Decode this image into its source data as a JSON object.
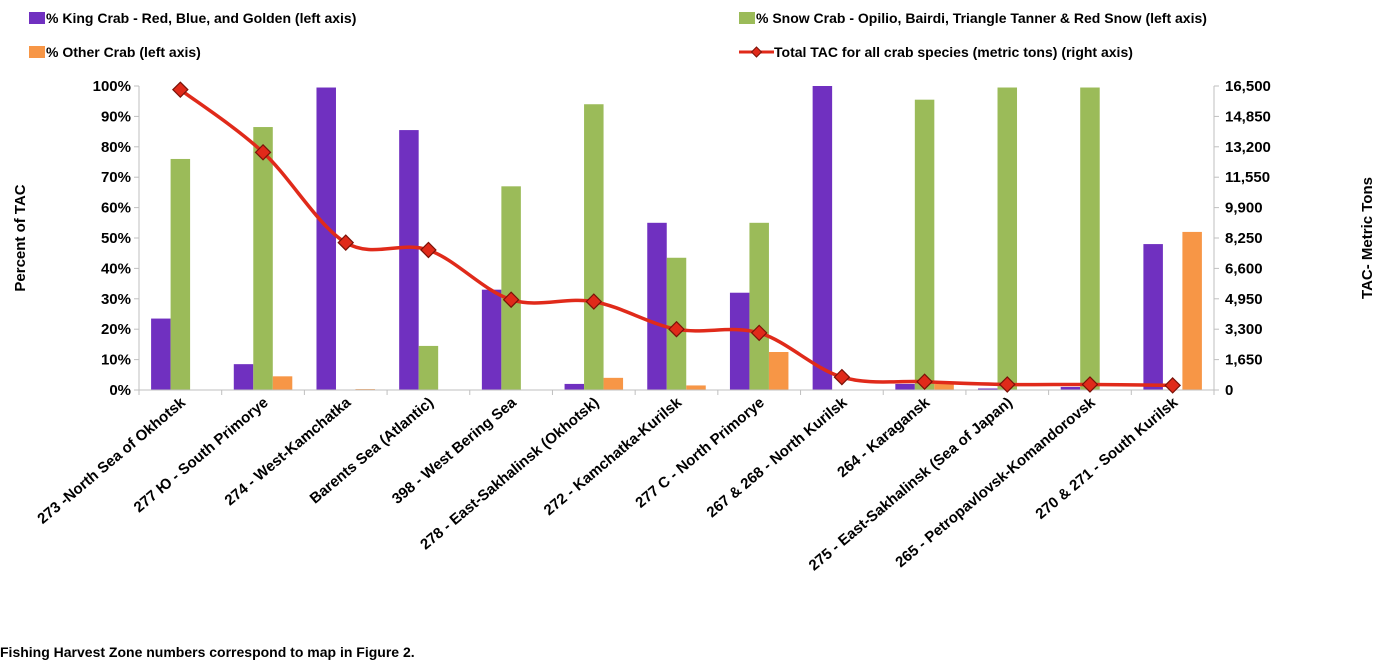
{
  "chart_data": {
    "type": "bar",
    "categories": [
      "273 -North Sea of Okhotsk",
      "277 Ю - South Primorye",
      "274 - West-Kamchatka",
      "Barents Sea (Atlantic)",
      "398 - West Bering Sea",
      "278 - East-Sakhalinsk (Okhotsk)",
      "272 - Kamchatka-Kurilsk",
      "277 C - North Primorye",
      "267 & 268 - North Kurilsk",
      "264 - Karagansk",
      "275 - East-Sakhalinsk (Sea of Japan)",
      "265 - Petropavlovsk-Komandorovsk",
      "270 & 271 - South Kurilsk"
    ],
    "series": [
      {
        "name": "% King Crab -  Red, Blue, and Golden (left axis)",
        "axis": "left",
        "kind": "bar",
        "color": "#7030c0",
        "values": [
          23.5,
          8.5,
          99.5,
          85.5,
          33,
          2,
          55,
          32,
          100,
          2,
          0.5,
          1,
          48
        ]
      },
      {
        "name": "% Snow Crab - Opilio, Bairdi, Triangle Tanner & Red Snow (left axis)",
        "axis": "left",
        "kind": "bar",
        "color": "#9bbb59",
        "values": [
          76,
          86.5,
          0,
          14.5,
          67,
          94,
          43.5,
          55,
          0,
          95.5,
          99.5,
          99.5,
          0
        ]
      },
      {
        "name": "% Other Crab (left axis)",
        "axis": "left",
        "kind": "bar",
        "color": "#f79646",
        "values": [
          0,
          4.5,
          0.3,
          0,
          0,
          4,
          1.5,
          12.5,
          0,
          2,
          0,
          0,
          52
        ]
      },
      {
        "name": "Total TAC for all crab species (metric tons) (right axis)",
        "axis": "right",
        "kind": "line",
        "color": "#e02a1a",
        "values": [
          16300,
          12900,
          8000,
          7600,
          4900,
          4800,
          3300,
          3100,
          700,
          450,
          300,
          300,
          250
        ]
      }
    ],
    "ylabel": "Percent of TAC",
    "y2label": "TAC- Metric Tons",
    "ylim": [
      0,
      100
    ],
    "y2lim": [
      0,
      16500
    ],
    "yticks": [
      "0%",
      "10%",
      "20%",
      "30%",
      "40%",
      "50%",
      "60%",
      "70%",
      "80%",
      "90%",
      "100%"
    ],
    "y2ticks": [
      "0",
      "1,650",
      "3,300",
      "4,950",
      "6,600",
      "8,250",
      "9,900",
      "11,550",
      "13,200",
      "14,850",
      "16,500"
    ],
    "legend": "top",
    "grid": false
  },
  "footnote": "Fishing Harvest Zone numbers correspond to map in Figure 2."
}
